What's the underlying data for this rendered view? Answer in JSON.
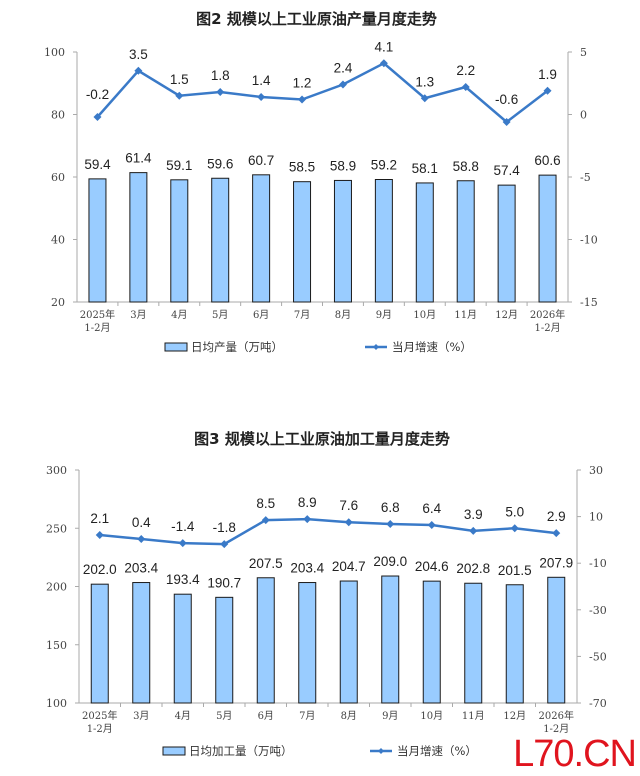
{
  "chart_data": [
    {
      "type": "bar+line",
      "title": "图2  规模以上工业原油产量月度走势",
      "categories": [
        [
          "2025年",
          "1-2月"
        ],
        [
          "3月"
        ],
        [
          "4月"
        ],
        [
          "5月"
        ],
        [
          "6月"
        ],
        [
          "7月"
        ],
        [
          "8月"
        ],
        [
          "9月"
        ],
        [
          "10月"
        ],
        [
          "11月"
        ],
        [
          "12月"
        ],
        [
          "2026年",
          "1-2月"
        ]
      ],
      "series": [
        {
          "name": "日均产量（万吨）",
          "type": "bar",
          "axis": "left",
          "values": [
            59.4,
            61.4,
            59.1,
            59.6,
            60.7,
            58.5,
            58.9,
            59.2,
            58.1,
            58.8,
            57.4,
            60.6
          ],
          "labels": [
            "59.4",
            "61.4",
            "59.1",
            "59.6",
            "60.7",
            "58.5",
            "58.9",
            "59.2",
            "58.1",
            "58.8",
            "57.4",
            "60.6"
          ]
        },
        {
          "name": "当月增速（%）",
          "type": "line",
          "axis": "right",
          "values": [
            -0.2,
            3.5,
            1.5,
            1.8,
            1.4,
            1.2,
            2.4,
            4.1,
            1.3,
            2.2,
            -0.6,
            1.9
          ],
          "labels": [
            "-0.2",
            "3.5",
            "1.5",
            "1.8",
            "1.4",
            "1.2",
            "2.4",
            "4.1",
            "1.3",
            "2.2",
            "-0.6",
            "1.9"
          ]
        }
      ],
      "ylim_left": [
        20,
        100
      ],
      "yticks_left": [
        "20",
        "40",
        "60",
        "80",
        "100"
      ],
      "ylim_right": [
        -15,
        5
      ],
      "yticks_right": [
        "-15",
        "-10",
        "-5",
        "0",
        "5"
      ],
      "legend": "bottom"
    },
    {
      "type": "bar+line",
      "title": "图3  规模以上工业原油加工量月度走势",
      "categories": [
        [
          "2025年",
          "1-2月"
        ],
        [
          "3月"
        ],
        [
          "4月"
        ],
        [
          "5月"
        ],
        [
          "6月"
        ],
        [
          "7月"
        ],
        [
          "8月"
        ],
        [
          "9月"
        ],
        [
          "10月"
        ],
        [
          "11月"
        ],
        [
          "12月"
        ],
        [
          "2026年",
          "1-2月"
        ]
      ],
      "series": [
        {
          "name": "日均加工量（万吨）",
          "type": "bar",
          "axis": "left",
          "values": [
            202.0,
            203.4,
            193.4,
            190.7,
            207.5,
            203.4,
            204.7,
            209.0,
            204.6,
            202.8,
            201.5,
            207.9
          ],
          "labels": [
            "202.0",
            "203.4",
            "193.4",
            "190.7",
            "207.5",
            "203.4",
            "204.7",
            "209.0",
            "204.6",
            "202.8",
            "201.5",
            "207.9"
          ]
        },
        {
          "name": "当月增速（%）",
          "type": "line",
          "axis": "right",
          "values": [
            2.1,
            0.4,
            -1.4,
            -1.8,
            8.5,
            8.9,
            7.6,
            6.8,
            6.4,
            3.9,
            5.0,
            2.9
          ],
          "labels": [
            "2.1",
            "0.4",
            "-1.4",
            "-1.8",
            "8.5",
            "8.9",
            "7.6",
            "6.8",
            "6.4",
            "3.9",
            "5.0",
            "2.9"
          ]
        }
      ],
      "ylim_left": [
        100,
        300
      ],
      "yticks_left": [
        "100",
        "150",
        "200",
        "250",
        "300"
      ],
      "ylim_right": [
        -70,
        30
      ],
      "yticks_right": [
        "-70",
        "-50",
        "-30",
        "-10",
        "10",
        "30"
      ],
      "legend": "bottom"
    }
  ],
  "colors": {
    "bar": "#99ccff",
    "bar_stroke": "#1a1a1a",
    "line": "#3a7ac8",
    "axis": "#aaaaaa"
  },
  "watermark": "L70.CN"
}
